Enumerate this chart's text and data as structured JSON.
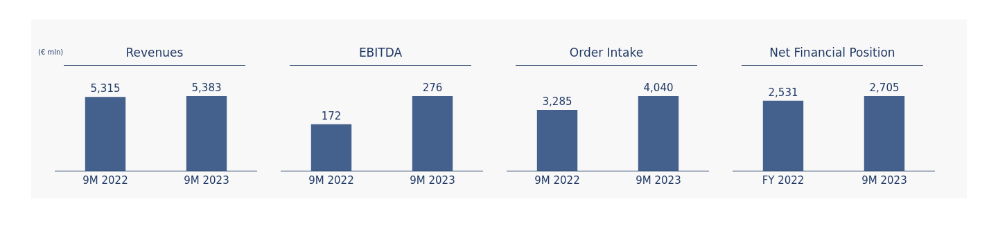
{
  "chart_data": [
    {
      "type": "bar",
      "title": "Revenues",
      "annotations": [
        "(€ mln)"
      ],
      "categories": [
        "9M 2022",
        "9M 2023"
      ],
      "values": [
        5315,
        5383
      ],
      "value_labels": [
        "5,315",
        "5,383"
      ],
      "color": "#44618e",
      "tick_labels": "x",
      "grid": false,
      "legend": false
    },
    {
      "type": "bar",
      "title": "EBITDA",
      "categories": [
        "9M 2022",
        "9M 2023"
      ],
      "values": [
        172,
        276
      ],
      "value_labels": [
        "172",
        "276"
      ],
      "color": "#44618e",
      "tick_labels": "x",
      "grid": false,
      "legend": false
    },
    {
      "type": "bar",
      "title": "Order Intake",
      "categories": [
        "9M 2022",
        "9M 2023"
      ],
      "values": [
        3285,
        4040
      ],
      "value_labels": [
        "3,285",
        "4,040"
      ],
      "color": "#44618e",
      "tick_labels": "x",
      "grid": false,
      "legend": false
    },
    {
      "type": "bar",
      "title": "Net Financial Position",
      "categories": [
        "FY 2022",
        "9M 2023"
      ],
      "values": [
        2531,
        2705
      ],
      "value_labels": [
        "2,531",
        "2,705"
      ],
      "color": "#44618e",
      "tick_labels": "x",
      "grid": false,
      "legend": false
    }
  ]
}
